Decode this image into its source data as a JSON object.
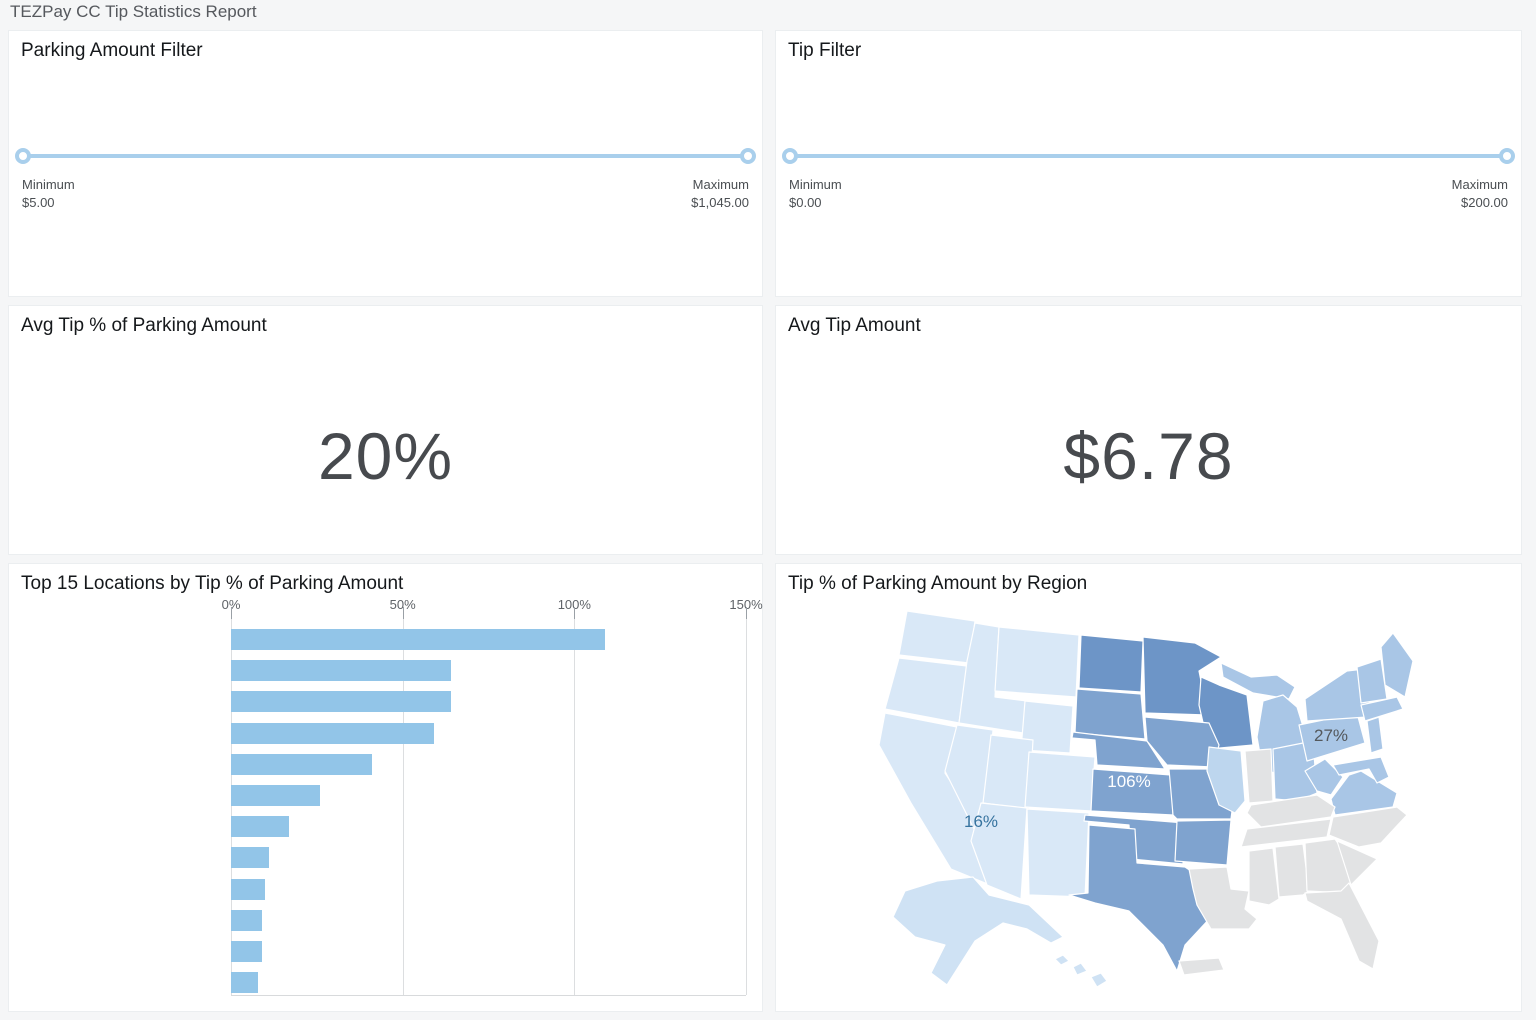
{
  "theme": {
    "background": "#f5f6f7",
    "slider_accent": "#a9cfec",
    "panel_border": "#ebeef0"
  },
  "page": {
    "title": "TEZPay CC Tip Statistics Report"
  },
  "filters": {
    "parking": {
      "title": "Parking Amount Filter",
      "min_label": "Minimum",
      "min_value": "$5.00",
      "max_label": "Maximum",
      "max_value": "$1,045.00"
    },
    "tip": {
      "title": "Tip Filter",
      "min_label": "Minimum",
      "min_value": "$0.00",
      "max_label": "Maximum",
      "max_value": "$200.00"
    }
  },
  "kpis": {
    "avg_tip_pct": {
      "title": "Avg Tip % of Parking Amount",
      "value": "20%"
    },
    "avg_tip_amount": {
      "title": "Avg Tip Amount",
      "value": "$6.78"
    }
  },
  "chart_data": [
    {
      "type": "bar",
      "orientation": "horizontal",
      "title": "Top 15 Locations by Tip % of Parking Amount",
      "x_ticks": [
        "0%",
        "50%",
        "100%",
        "150%"
      ],
      "x_tick_values": [
        0,
        50,
        100,
        150
      ],
      "xlim": [
        0,
        150
      ],
      "values": [
        109,
        64,
        64,
        59,
        41,
        26,
        17,
        11,
        10,
        9,
        9,
        8
      ],
      "category_labels_visible": false,
      "visible_rows": 12,
      "bar_color": "#92c5e8",
      "grid": "vertical"
    },
    {
      "type": "choropleth",
      "title": "Tip % of Parking Amount by Region",
      "geography": "USA states",
      "annotations": [
        {
          "text": "27%",
          "region": "middle-atlantic"
        },
        {
          "text": "106%",
          "region": "west-north-central"
        },
        {
          "text": "16%",
          "region": "mountain-west"
        }
      ],
      "colors": {
        "west": "#d9e8f7",
        "alaska_hawaii": "#cfe2f4",
        "west_north_central": "#7fa3cf",
        "upper_midwest": "#6d95c7",
        "east": "#a9c6e6",
        "illinois": "#bdd6ee",
        "no_data": "#e2e3e4"
      },
      "label_colors": {
        "dark": "#54585c",
        "light": "#ffffff",
        "blue": "#36739f"
      }
    }
  ]
}
